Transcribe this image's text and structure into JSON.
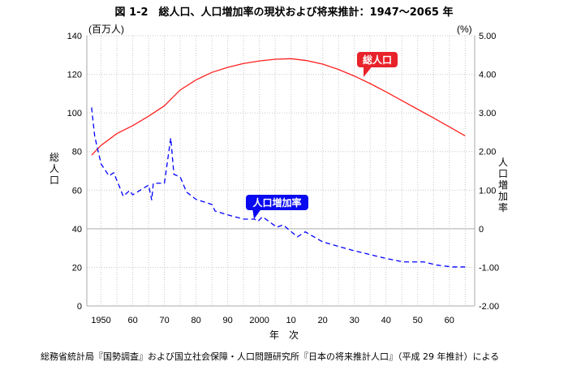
{
  "chart_data": {
    "type": "line",
    "title": "図 1-2　総人口、人口増加率の現状および将来推計：1947〜2065 年",
    "xlabel": "年　次",
    "ylabel_left": "総人口",
    "ylabel_left_unit": "(百万人)",
    "ylabel_right": "人口増加率",
    "ylabel_right_unit": "(%)",
    "x_ticks": [
      {
        "year": 1950,
        "label": "1950"
      },
      {
        "year": 1960,
        "label": "60"
      },
      {
        "year": 1970,
        "label": "70"
      },
      {
        "year": 1980,
        "label": "80"
      },
      {
        "year": 1990,
        "label": "90"
      },
      {
        "year": 2000,
        "label": "2000"
      },
      {
        "year": 2010,
        "label": "10"
      },
      {
        "year": 2020,
        "label": "20"
      },
      {
        "year": 2030,
        "label": "30"
      },
      {
        "year": 2040,
        "label": "40"
      },
      {
        "year": 2050,
        "label": "50"
      },
      {
        "year": 2060,
        "label": "60"
      }
    ],
    "xlim": [
      1945.5,
      2068
    ],
    "ylim_left": [
      0,
      140
    ],
    "y_ticks_left": [
      "0",
      "20",
      "40",
      "60",
      "80",
      "100",
      "120",
      "140"
    ],
    "ylim_right": [
      -2,
      5
    ],
    "y_ticks_right": [
      "-2.00",
      "-1.00",
      "0",
      "1.00",
      "2.00",
      "3.00",
      "4.00",
      "5.00"
    ],
    "grid": true,
    "series": [
      {
        "name": "総人口",
        "axis": "left",
        "color": "#ff2020",
        "style": "solid",
        "x": [
          1947,
          1950,
          1955,
          1960,
          1965,
          1970,
          1975,
          1980,
          1985,
          1990,
          1995,
          2000,
          2005,
          2010,
          2015,
          2020,
          2025,
          2030,
          2035,
          2040,
          2045,
          2050,
          2055,
          2060,
          2065
        ],
        "y": [
          78.1,
          83.2,
          89.3,
          93.4,
          98.3,
          103.7,
          111.9,
          117.1,
          121.0,
          123.6,
          125.6,
          126.9,
          127.8,
          128.1,
          127.1,
          125.3,
          122.5,
          119.1,
          115.2,
          110.9,
          106.4,
          101.9,
          97.4,
          92.8,
          88.1
        ]
      },
      {
        "name": "人口増加率",
        "axis": "right",
        "color": "#0000ff",
        "style": "dashed",
        "x": [
          1947,
          1948,
          1950,
          1952.5,
          1954,
          1956,
          1957,
          1959,
          1960,
          1965,
          1966,
          1966.5,
          1970,
          1972,
          1973,
          1975,
          1977,
          1980,
          1985,
          1986,
          1990,
          1995,
          1998.5,
          1999.5,
          2001,
          2005.5,
          2007.5,
          2012,
          2014.5,
          2020,
          2029,
          2039.5,
          2045.5,
          2052,
          2056,
          2061,
          2065
        ],
        "y": [
          3.14,
          2.39,
          1.68,
          1.37,
          1.45,
          1.05,
          0.84,
          0.99,
          0.88,
          1.13,
          0.74,
          1.18,
          1.18,
          2.35,
          1.41,
          1.34,
          0.95,
          0.76,
          0.63,
          0.46,
          0.36,
          0.25,
          0.25,
          0.19,
          0.31,
          0.04,
          0.1,
          -0.21,
          -0.08,
          -0.34,
          -0.55,
          -0.76,
          -0.86,
          -0.86,
          -0.94,
          -0.99,
          -0.99
        ]
      }
    ],
    "annotations": [
      {
        "text": "総人口",
        "series": "総人口",
        "color": "#e8232a"
      },
      {
        "text": "人口増加率",
        "series": "人口増加率",
        "color": "#0a0af0"
      }
    ]
  },
  "source": "総務省統計局『国勢調査』および国立社会保障・人口問題研究所『日本の将来推計人口』（平成 29 年推計）による"
}
